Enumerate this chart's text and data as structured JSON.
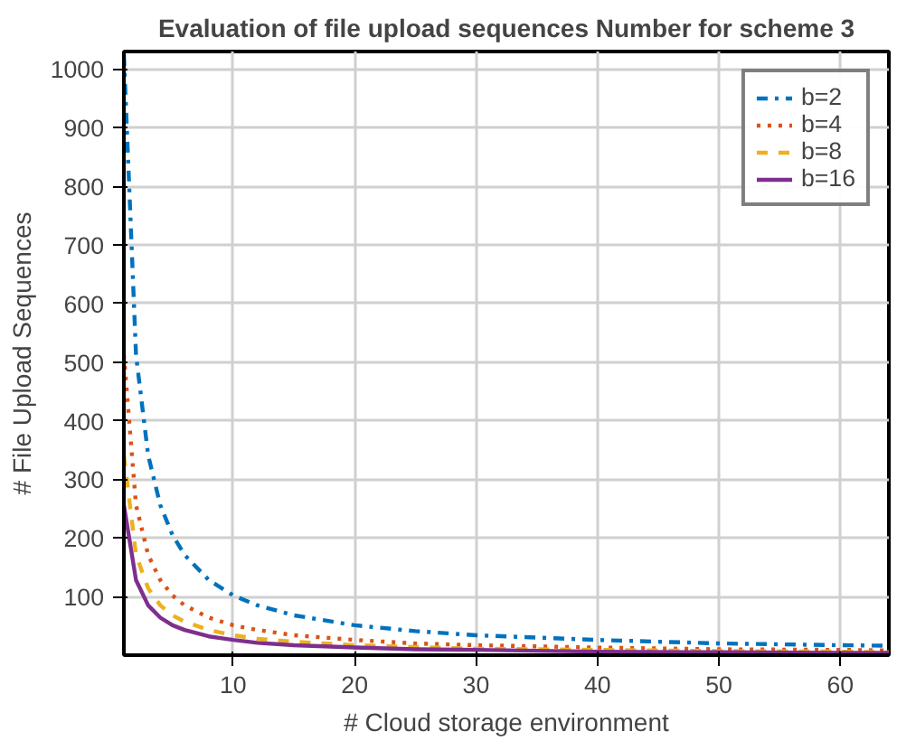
{
  "chart_data": {
    "type": "line",
    "title": "Evaluation of file upload sequences Number for scheme 3",
    "xlabel": "# Cloud storage environment",
    "ylabel": "# File Upload Sequences",
    "x": [
      1,
      2,
      3,
      4,
      5,
      6,
      8,
      10,
      12,
      15,
      20,
      25,
      30,
      40,
      50,
      60,
      64
    ],
    "series": [
      {
        "name": "b=2",
        "color": "#0072bd",
        "line_style": "dashdot",
        "values": [
          1024,
          512,
          341,
          256,
          205,
          171,
          128,
          102,
          85,
          68,
          51,
          41,
          34,
          26,
          20,
          17,
          16
        ]
      },
      {
        "name": "b=4",
        "color": "#d95319",
        "line_style": "dotted",
        "values": [
          512,
          256,
          171,
          128,
          102,
          85,
          64,
          51,
          43,
          34,
          26,
          20,
          17,
          13,
          10,
          9,
          8
        ]
      },
      {
        "name": "b=8",
        "color": "#edb120",
        "line_style": "dashed",
        "values": [
          341,
          171,
          114,
          85,
          68,
          57,
          43,
          34,
          28,
          23,
          17,
          14,
          11,
          9,
          7,
          6,
          5
        ]
      },
      {
        "name": "b=16",
        "color": "#7e2f8e",
        "line_style": "solid",
        "values": [
          256,
          128,
          85,
          64,
          51,
          43,
          32,
          26,
          21,
          17,
          13,
          10,
          9,
          6,
          5,
          4,
          4
        ]
      }
    ],
    "xlim": [
      1,
      64
    ],
    "ylim": [
      0,
      1030
    ],
    "xticks": [
      10,
      20,
      30,
      40,
      50,
      60
    ],
    "yticks": [
      100,
      200,
      300,
      400,
      500,
      600,
      700,
      800,
      900,
      1000
    ],
    "grid": true,
    "legend": "top right"
  }
}
